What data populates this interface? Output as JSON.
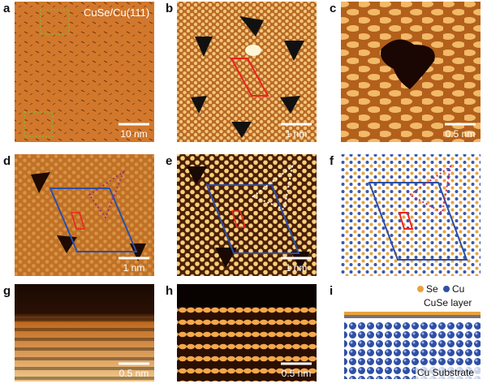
{
  "panels": [
    {
      "label": "a",
      "caption": "CuSe/Cu(111)",
      "scale_bar": "10 nm"
    },
    {
      "label": "b",
      "scale_bar": "1 nm"
    },
    {
      "label": "c",
      "scale_bar": "0.5 nm"
    },
    {
      "label": "d",
      "scale_bar": "1 nm"
    },
    {
      "label": "e",
      "scale_bar": "1 nm"
    },
    {
      "label": "f"
    },
    {
      "label": "g",
      "scale_bar": "0.5 nm"
    },
    {
      "label": "h",
      "scale_bar": "0.5 nm"
    },
    {
      "label": "i",
      "legend": [
        "Se",
        "Cu"
      ],
      "top_layer": "CuSe layer",
      "substrate": "Cu Substrate"
    }
  ]
}
